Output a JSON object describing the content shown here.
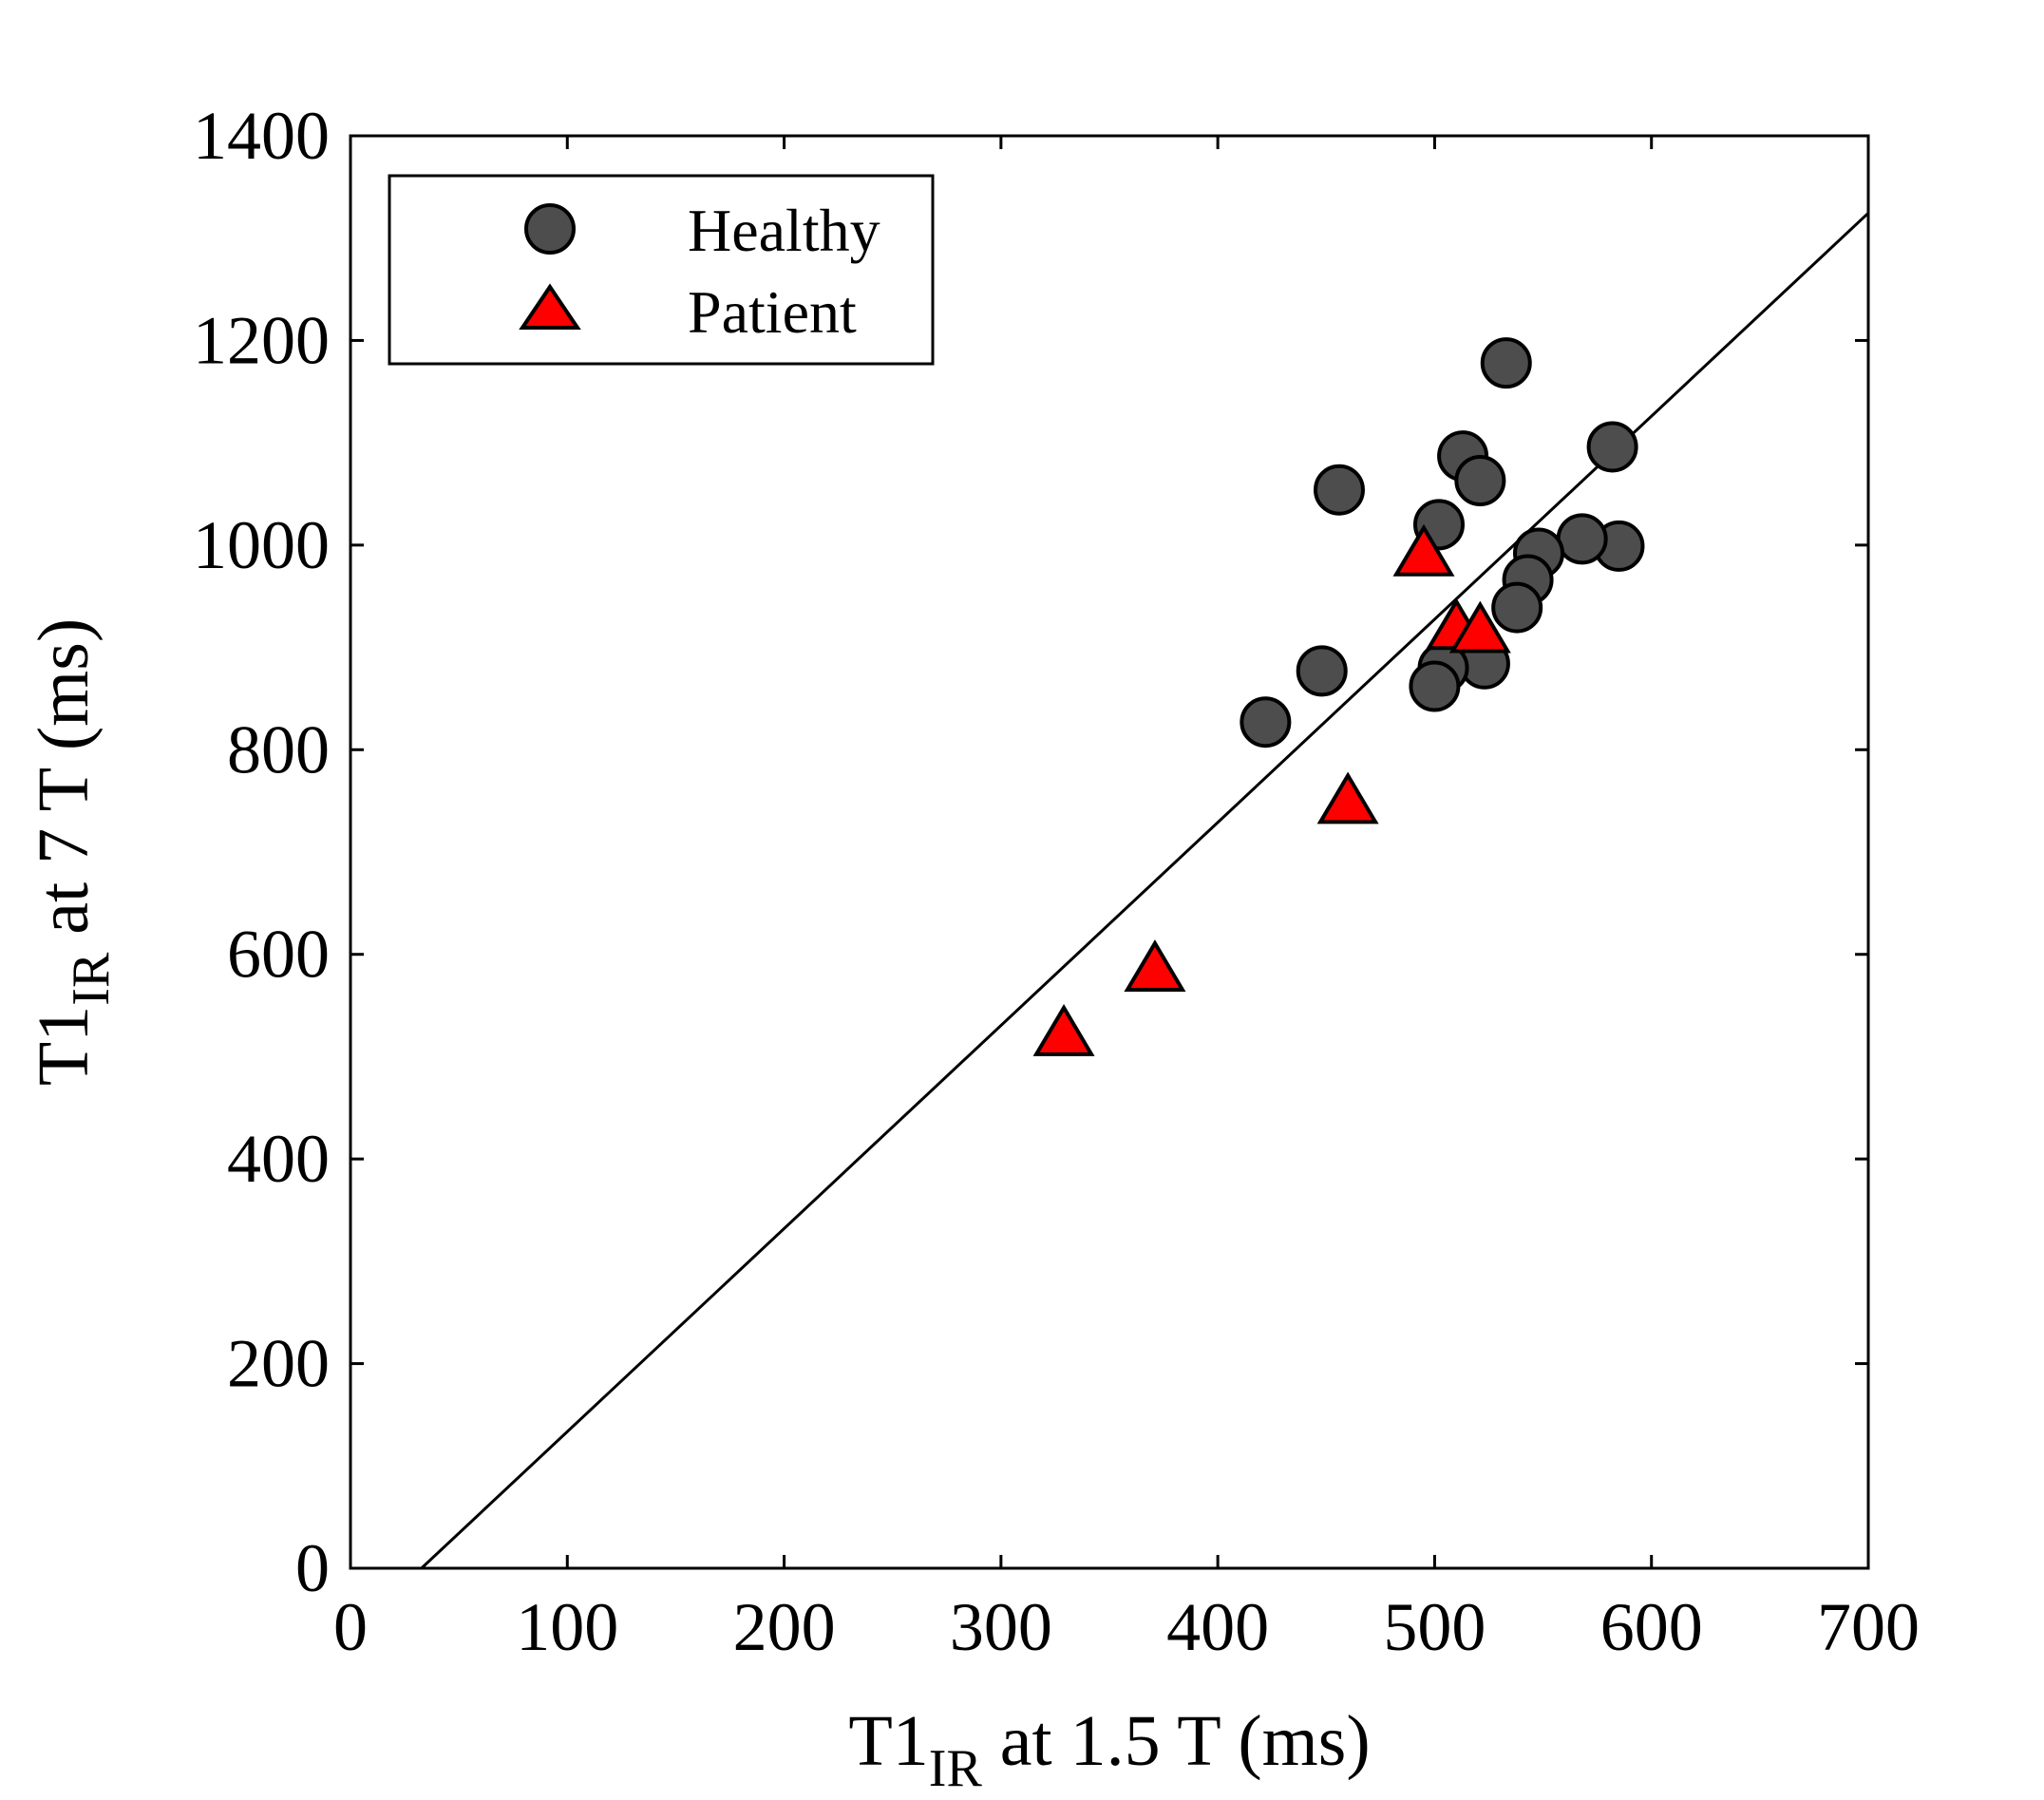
{
  "chart_data": {
    "type": "scatter",
    "title": "",
    "xlabel": {
      "main": "T1",
      "sub": "IR",
      "rest": " at 1.5 T (ms)"
    },
    "ylabel": {
      "main": "T1",
      "sub": "IR",
      "rest": " at 7 T (ms)"
    },
    "xlim": [
      0,
      700
    ],
    "ylim": [
      0,
      1400
    ],
    "xticks": [
      0,
      100,
      200,
      300,
      400,
      500,
      600,
      700
    ],
    "yticks": [
      0,
      200,
      400,
      600,
      800,
      1000,
      1200,
      1400
    ],
    "grid": false,
    "legend_placement": "top-left",
    "colors": {
      "healthy": "#4d4d4d",
      "patient": "#ff0000",
      "line": "#000000"
    },
    "series": [
      {
        "name": "Healthy",
        "marker": "circle",
        "x": [
          422,
          448,
          456,
          502,
          513,
          521,
          533,
          582,
          585,
          568,
          548,
          543,
          538,
          523,
          504,
          500
        ],
        "y": [
          827,
          877,
          1054,
          1020,
          1087,
          1063,
          1178,
          1096,
          999,
          1006,
          992,
          966,
          939,
          884,
          880,
          862
        ]
      },
      {
        "name": "Patient",
        "marker": "triangle",
        "x": [
          329,
          371,
          460,
          495,
          510,
          521
        ],
        "y": [
          520,
          583,
          747,
          989,
          917,
          914
        ]
      }
    ],
    "fit_line": {
      "slope": 1.985,
      "intercept": -65
    }
  }
}
